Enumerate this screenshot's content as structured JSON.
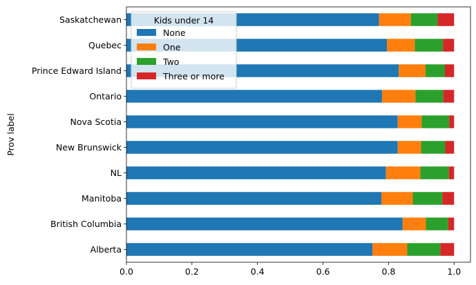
{
  "chart_data": {
    "type": "bar",
    "orientation": "horizontal",
    "stacked": true,
    "categories": [
      "Alberta",
      "British Columbia",
      "Manitoba",
      "NL",
      "New Brunswick",
      "Nova Scotia",
      "Ontario",
      "Prince Edward Island",
      "Quebec",
      "Saskatchewan"
    ],
    "series": [
      {
        "name": "None",
        "color": "#1f77b4",
        "values": [
          0.751,
          0.843,
          0.778,
          0.792,
          0.828,
          0.828,
          0.78,
          0.831,
          0.795,
          0.771
        ]
      },
      {
        "name": "One",
        "color": "#ff7f0e",
        "values": [
          0.106,
          0.071,
          0.096,
          0.105,
          0.071,
          0.073,
          0.102,
          0.082,
          0.085,
          0.097
        ]
      },
      {
        "name": "Two",
        "color": "#2ca02c",
        "values": [
          0.101,
          0.068,
          0.09,
          0.087,
          0.074,
          0.084,
          0.085,
          0.059,
          0.086,
          0.082
        ]
      },
      {
        "name": "Three or more",
        "color": "#d62728",
        "values": [
          0.042,
          0.018,
          0.036,
          0.016,
          0.027,
          0.015,
          0.033,
          0.028,
          0.034,
          0.05
        ]
      }
    ],
    "xlim": [
      0,
      1.05
    ],
    "xticks": [
      "0.0",
      "0.2",
      "0.4",
      "0.6",
      "0.8",
      "1.0"
    ],
    "xtick_values": [
      0,
      0.2,
      0.4,
      0.6,
      0.8,
      1.0
    ],
    "ylabel": "Prov label",
    "xlabel": "",
    "legend": {
      "title": "Kids under 14",
      "placement": "top-left"
    },
    "grid": false
  }
}
